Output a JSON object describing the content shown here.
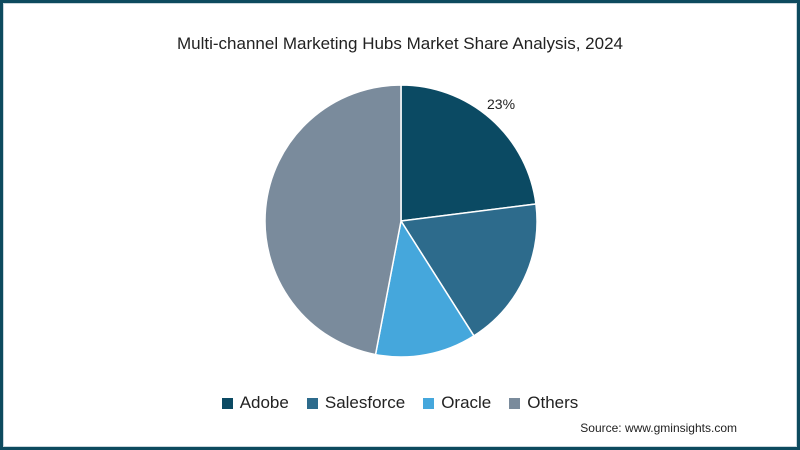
{
  "chart_data": {
    "type": "pie",
    "title": "Multi-channel Marketing Hubs Market Share Analysis, 2024",
    "categories": [
      "Adobe",
      "Salesforce",
      "Oracle",
      "Others"
    ],
    "values": [
      23,
      18,
      12,
      47
    ],
    "colors": [
      "#0b4a63",
      "#2d6b8c",
      "#45a7dc",
      "#7a8b9c"
    ],
    "data_labels": [
      {
        "category": "Adobe",
        "text": "23%"
      }
    ],
    "legend_position": "bottom",
    "source": "Source: www.gminsights.com"
  },
  "title": "Multi-channel Marketing Hubs Market Share Analysis, 2024",
  "label_adobe": "23%",
  "legend": [
    {
      "label": "Adobe",
      "color": "#0b4a63"
    },
    {
      "label": "Salesforce",
      "color": "#2d6b8c"
    },
    {
      "label": "Oracle",
      "color": "#45a7dc"
    },
    {
      "label": "Others",
      "color": "#7a8b9c"
    }
  ],
  "source": "Source: www.gminsights.com"
}
